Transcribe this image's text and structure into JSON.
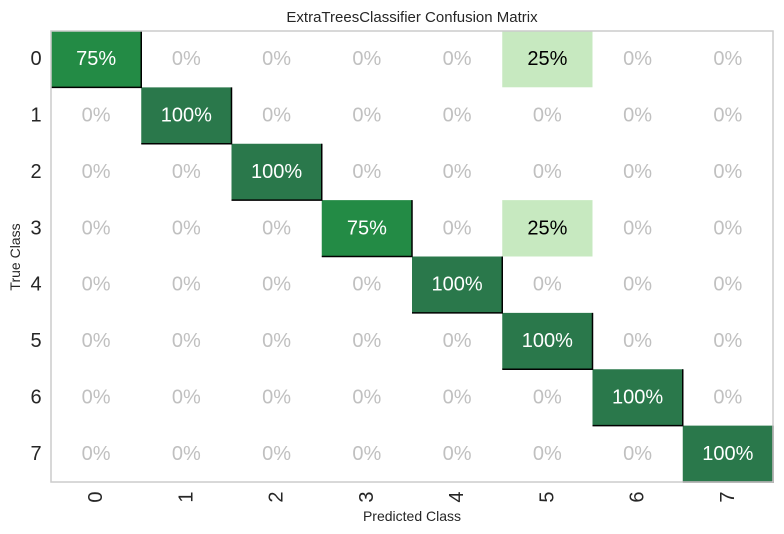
{
  "chart_data": {
    "type": "heatmap",
    "title": "ExtraTreesClassifier Confusion Matrix",
    "xlabel": "Predicted Class",
    "ylabel": "True Class",
    "x_categories": [
      "0",
      "1",
      "2",
      "3",
      "4",
      "5",
      "6",
      "7"
    ],
    "y_categories": [
      "0",
      "1",
      "2",
      "3",
      "4",
      "5",
      "6",
      "7"
    ],
    "values": [
      [
        75,
        0,
        0,
        0,
        0,
        25,
        0,
        0
      ],
      [
        0,
        100,
        0,
        0,
        0,
        0,
        0,
        0
      ],
      [
        0,
        0,
        100,
        0,
        0,
        0,
        0,
        0
      ],
      [
        0,
        0,
        0,
        75,
        0,
        25,
        0,
        0
      ],
      [
        0,
        0,
        0,
        0,
        100,
        0,
        0,
        0
      ],
      [
        0,
        0,
        0,
        0,
        0,
        100,
        0,
        0
      ],
      [
        0,
        0,
        0,
        0,
        0,
        0,
        100,
        0
      ],
      [
        0,
        0,
        0,
        0,
        0,
        0,
        0,
        100
      ]
    ],
    "value_format": "percent",
    "colors": {
      "full": "#2a784b",
      "high": "#238b45",
      "low": "#c7e9c0",
      "zero": "#ffffff",
      "zero_text": "#c0c0c0",
      "dark_text": "#000000",
      "light_text": "#ffffff",
      "diagonal_outline": "#000000",
      "frame": "#cccccc"
    }
  }
}
